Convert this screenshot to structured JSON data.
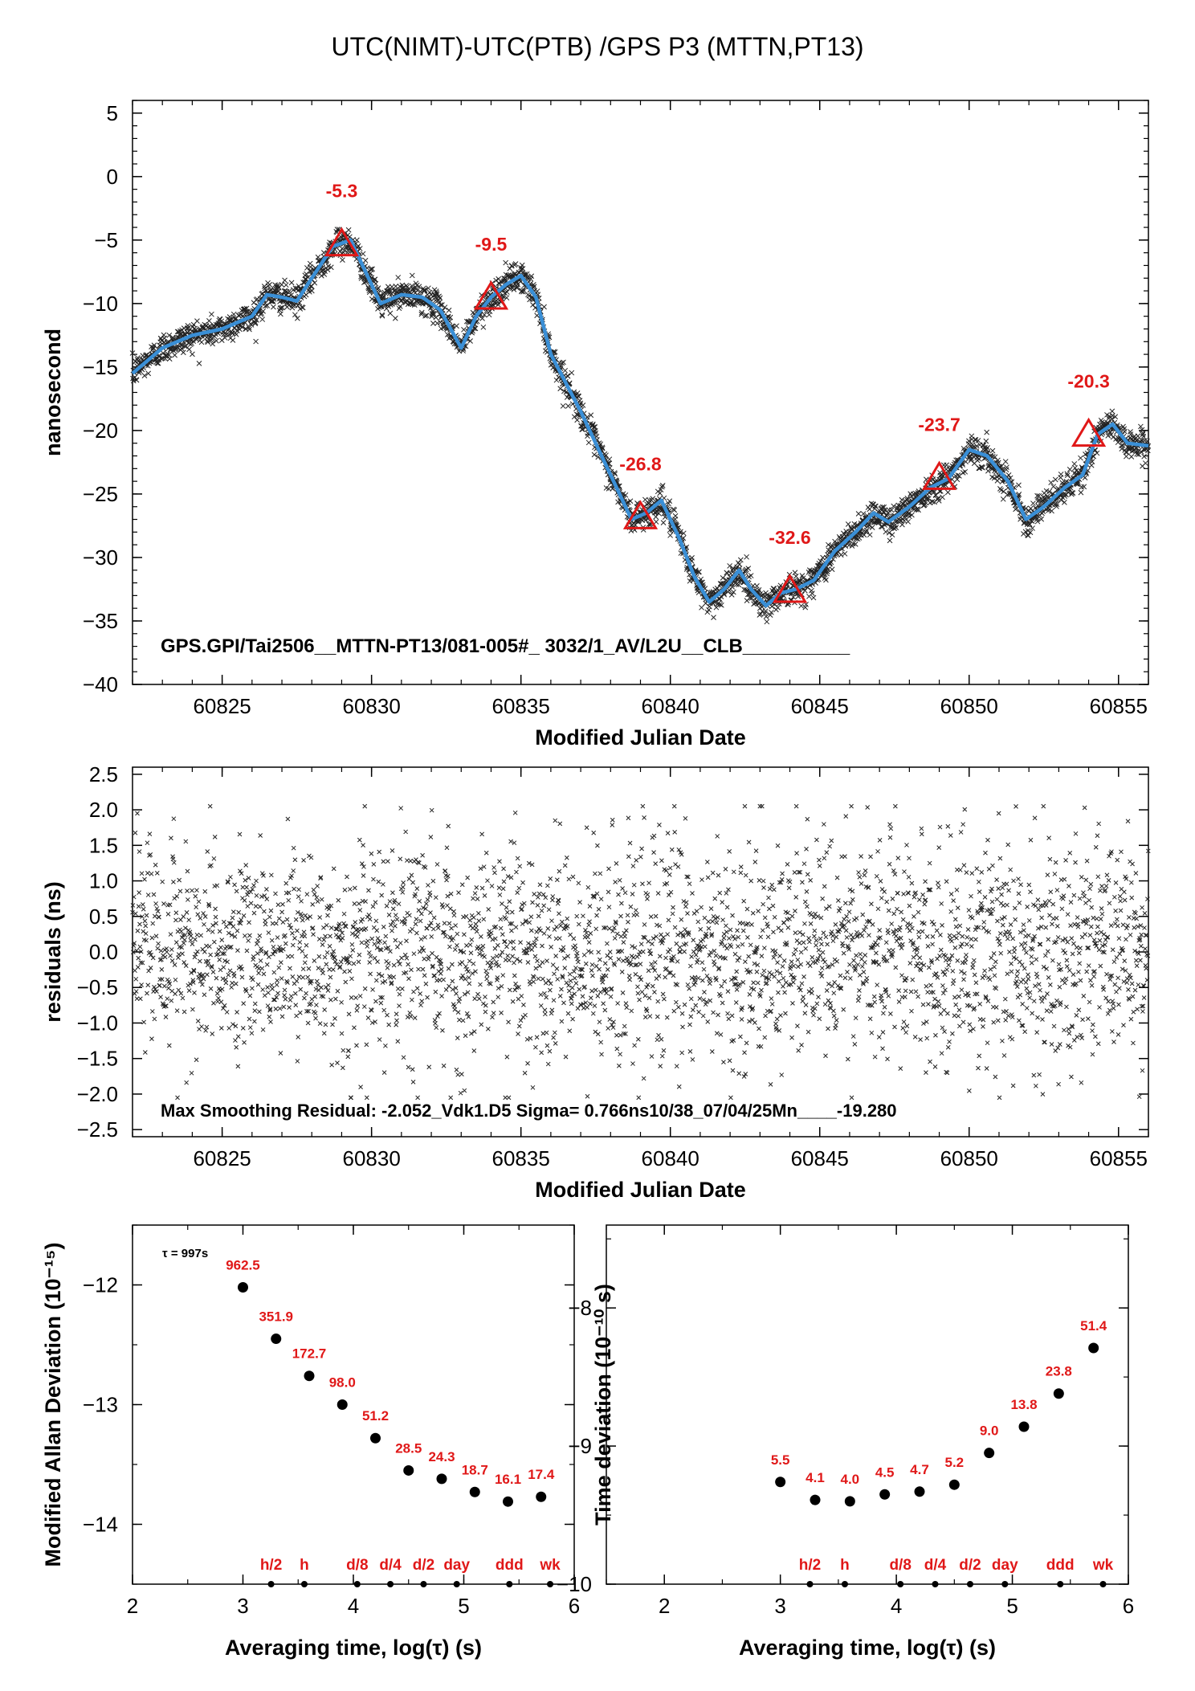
{
  "figure": {
    "title": "UTC(NIMT)-UTC(PTB)  /GPS  P3  (MTTN,PT13)"
  },
  "chart_data": [
    {
      "type": "line",
      "panel": "time-series",
      "xlabel": "Modified Julian Date",
      "ylabel": "nanosecond",
      "xlim": [
        60822,
        60856
      ],
      "ylim": [
        -40,
        6
      ],
      "xticks": [
        60825,
        60830,
        60835,
        60840,
        60845,
        60850,
        60855
      ],
      "yticks": [
        5,
        0,
        -5,
        -10,
        -15,
        -20,
        -25,
        -30,
        -35,
        -40
      ],
      "annotation": "GPS.GPI/Tai2506__MTTN-PT13/081-005#_  3032/1_AV/L2U__CLB__________",
      "smooth_curve": {
        "x": [
          60822,
          60823,
          60824,
          60825,
          60826,
          60826.5,
          60827,
          60827.5,
          60828,
          60828.7,
          60829.3,
          60829.8,
          60830.3,
          60831,
          60831.7,
          60832.3,
          60833,
          60833.5,
          60834,
          60834.5,
          60835,
          60835.5,
          60836,
          60837,
          60838,
          60838.7,
          60839.2,
          60839.7,
          60840.3,
          60840.8,
          60841.3,
          60841.8,
          60842.3,
          60842.7,
          60843.2,
          60843.7,
          60844.2,
          60844.8,
          60845.5,
          60846.2,
          60846.8,
          60847.3,
          60848,
          60848.7,
          60849.3,
          60850,
          60850.6,
          60851.3,
          60851.9,
          60852.5,
          60853.2,
          60853.8,
          60854.3,
          60854.8,
          60855.3,
          60856
        ],
        "y": [
          -15.5,
          -13.5,
          -12.5,
          -12,
          -11,
          -9.3,
          -9.5,
          -9.8,
          -8,
          -5.5,
          -5,
          -7.5,
          -10,
          -9.3,
          -9.5,
          -10.5,
          -13.5,
          -11,
          -9.5,
          -8.5,
          -7.8,
          -9.5,
          -14,
          -18.5,
          -23.5,
          -27,
          -26.5,
          -25.5,
          -28.5,
          -31.5,
          -33.5,
          -32.5,
          -31,
          -32.5,
          -33.8,
          -32.8,
          -32.5,
          -31.8,
          -29.5,
          -28,
          -26.5,
          -27.2,
          -26,
          -24.5,
          -23.8,
          -21.5,
          -22,
          -24,
          -27,
          -26,
          -24.5,
          -23.5,
          -20.3,
          -19.5,
          -21,
          -21.2
        ]
      },
      "markers": [
        {
          "x": 60829,
          "y": -5.3,
          "label": "-5.3"
        },
        {
          "x": 60834,
          "y": -9.5,
          "label": "-9.5"
        },
        {
          "x": 60839,
          "y": -26.8,
          "label": "-26.8"
        },
        {
          "x": 60844,
          "y": -32.6,
          "label": "-32.6"
        },
        {
          "x": 60849,
          "y": -23.7,
          "label": "-23.7"
        },
        {
          "x": 60854,
          "y": -20.3,
          "label": "-20.3"
        }
      ],
      "scatter_noise_ns": 0.77,
      "colors": {
        "curve": "#3a8fd6",
        "marker": "#e01818",
        "points": "#000000"
      }
    },
    {
      "type": "scatter",
      "panel": "residuals",
      "xlabel": "Modified Julian Date",
      "ylabel": "residuals (ns)",
      "xlim": [
        60822,
        60856
      ],
      "ylim": [
        -2.6,
        2.6
      ],
      "xticks": [
        60825,
        60830,
        60835,
        60840,
        60845,
        60850,
        60855
      ],
      "yticks": [
        2.5,
        2.0,
        1.5,
        1.0,
        0.5,
        0.0,
        -0.5,
        -1.0,
        -1.5,
        -2.0,
        -2.5
      ],
      "ytick_labels": [
        "2.5",
        "2.0",
        "1.5",
        "1.0",
        "0.5",
        "0.0",
        "−0.5",
        "−1.0",
        "−1.5",
        "−2.0",
        "−2.5"
      ],
      "annotation": "Max Smoothing Residual: -2.052_Vdk1.D5  Sigma= 0.766ns10/38_07/04/25Mn____-19.280",
      "sigma": 0.766,
      "max_residual": -2.052
    },
    {
      "type": "scatter",
      "panel": "mdev",
      "xlabel": "Averaging time, log(τ) (s)",
      "ylabel": "Modified Allan Deviation (10⁻¹⁵)",
      "xlim": [
        2,
        6
      ],
      "ylim": [
        -14.5,
        -11.5
      ],
      "xticks": [
        2,
        3,
        4,
        5,
        6
      ],
      "yticks": [
        -12,
        -13,
        -14
      ],
      "tau_note": "τ = 997s",
      "x": [
        3.0,
        3.3,
        3.6,
        3.9,
        4.2,
        4.5,
        4.8,
        5.1,
        5.4,
        5.7
      ],
      "y": [
        -12.02,
        -12.45,
        -12.76,
        -13.0,
        -13.28,
        -13.55,
        -13.62,
        -13.73,
        -13.81,
        -13.77
      ],
      "labels": [
        "962.5",
        "351.9",
        "172.7",
        "98.0",
        "51.2",
        "28.5",
        "24.3",
        "18.7",
        "16.1",
        "17.4"
      ],
      "ref_marks": [
        {
          "x": 3.255,
          "label": "h/2"
        },
        {
          "x": 3.556,
          "label": "h"
        },
        {
          "x": 4.035,
          "label": "d/8"
        },
        {
          "x": 4.335,
          "label": "d/4"
        },
        {
          "x": 4.636,
          "label": "d/2"
        },
        {
          "x": 4.936,
          "label": "day"
        },
        {
          "x": 5.413,
          "label": "ddd"
        },
        {
          "x": 5.782,
          "label": "wk"
        }
      ]
    },
    {
      "type": "scatter",
      "panel": "tdev",
      "xlabel": "Averaging time, log(τ) (s)",
      "ylabel": "Time deviation (10⁻¹⁰ s)",
      "xlim": [
        1.5,
        6
      ],
      "ylim": [
        -10,
        -7.4
      ],
      "xticks": [
        2,
        3,
        4,
        5,
        6
      ],
      "yticks": [
        -8,
        -9,
        -10
      ],
      "x": [
        3.0,
        3.3,
        3.6,
        3.9,
        4.2,
        4.5,
        4.8,
        5.1,
        5.4,
        5.7
      ],
      "y": [
        -9.26,
        -9.39,
        -9.4,
        -9.35,
        -9.33,
        -9.28,
        -9.05,
        -8.86,
        -8.62,
        -8.29
      ],
      "labels": [
        "5.5",
        "4.1",
        "4.0",
        "4.5",
        "4.7",
        "5.2",
        "9.0",
        "13.8",
        "23.8",
        "51.4"
      ],
      "ref_marks": [
        {
          "x": 3.255,
          "label": "h/2"
        },
        {
          "x": 3.556,
          "label": "h"
        },
        {
          "x": 4.035,
          "label": "d/8"
        },
        {
          "x": 4.335,
          "label": "d/4"
        },
        {
          "x": 4.636,
          "label": "d/2"
        },
        {
          "x": 4.936,
          "label": "day"
        },
        {
          "x": 5.413,
          "label": "ddd"
        },
        {
          "x": 5.782,
          "label": "wk"
        }
      ]
    }
  ]
}
